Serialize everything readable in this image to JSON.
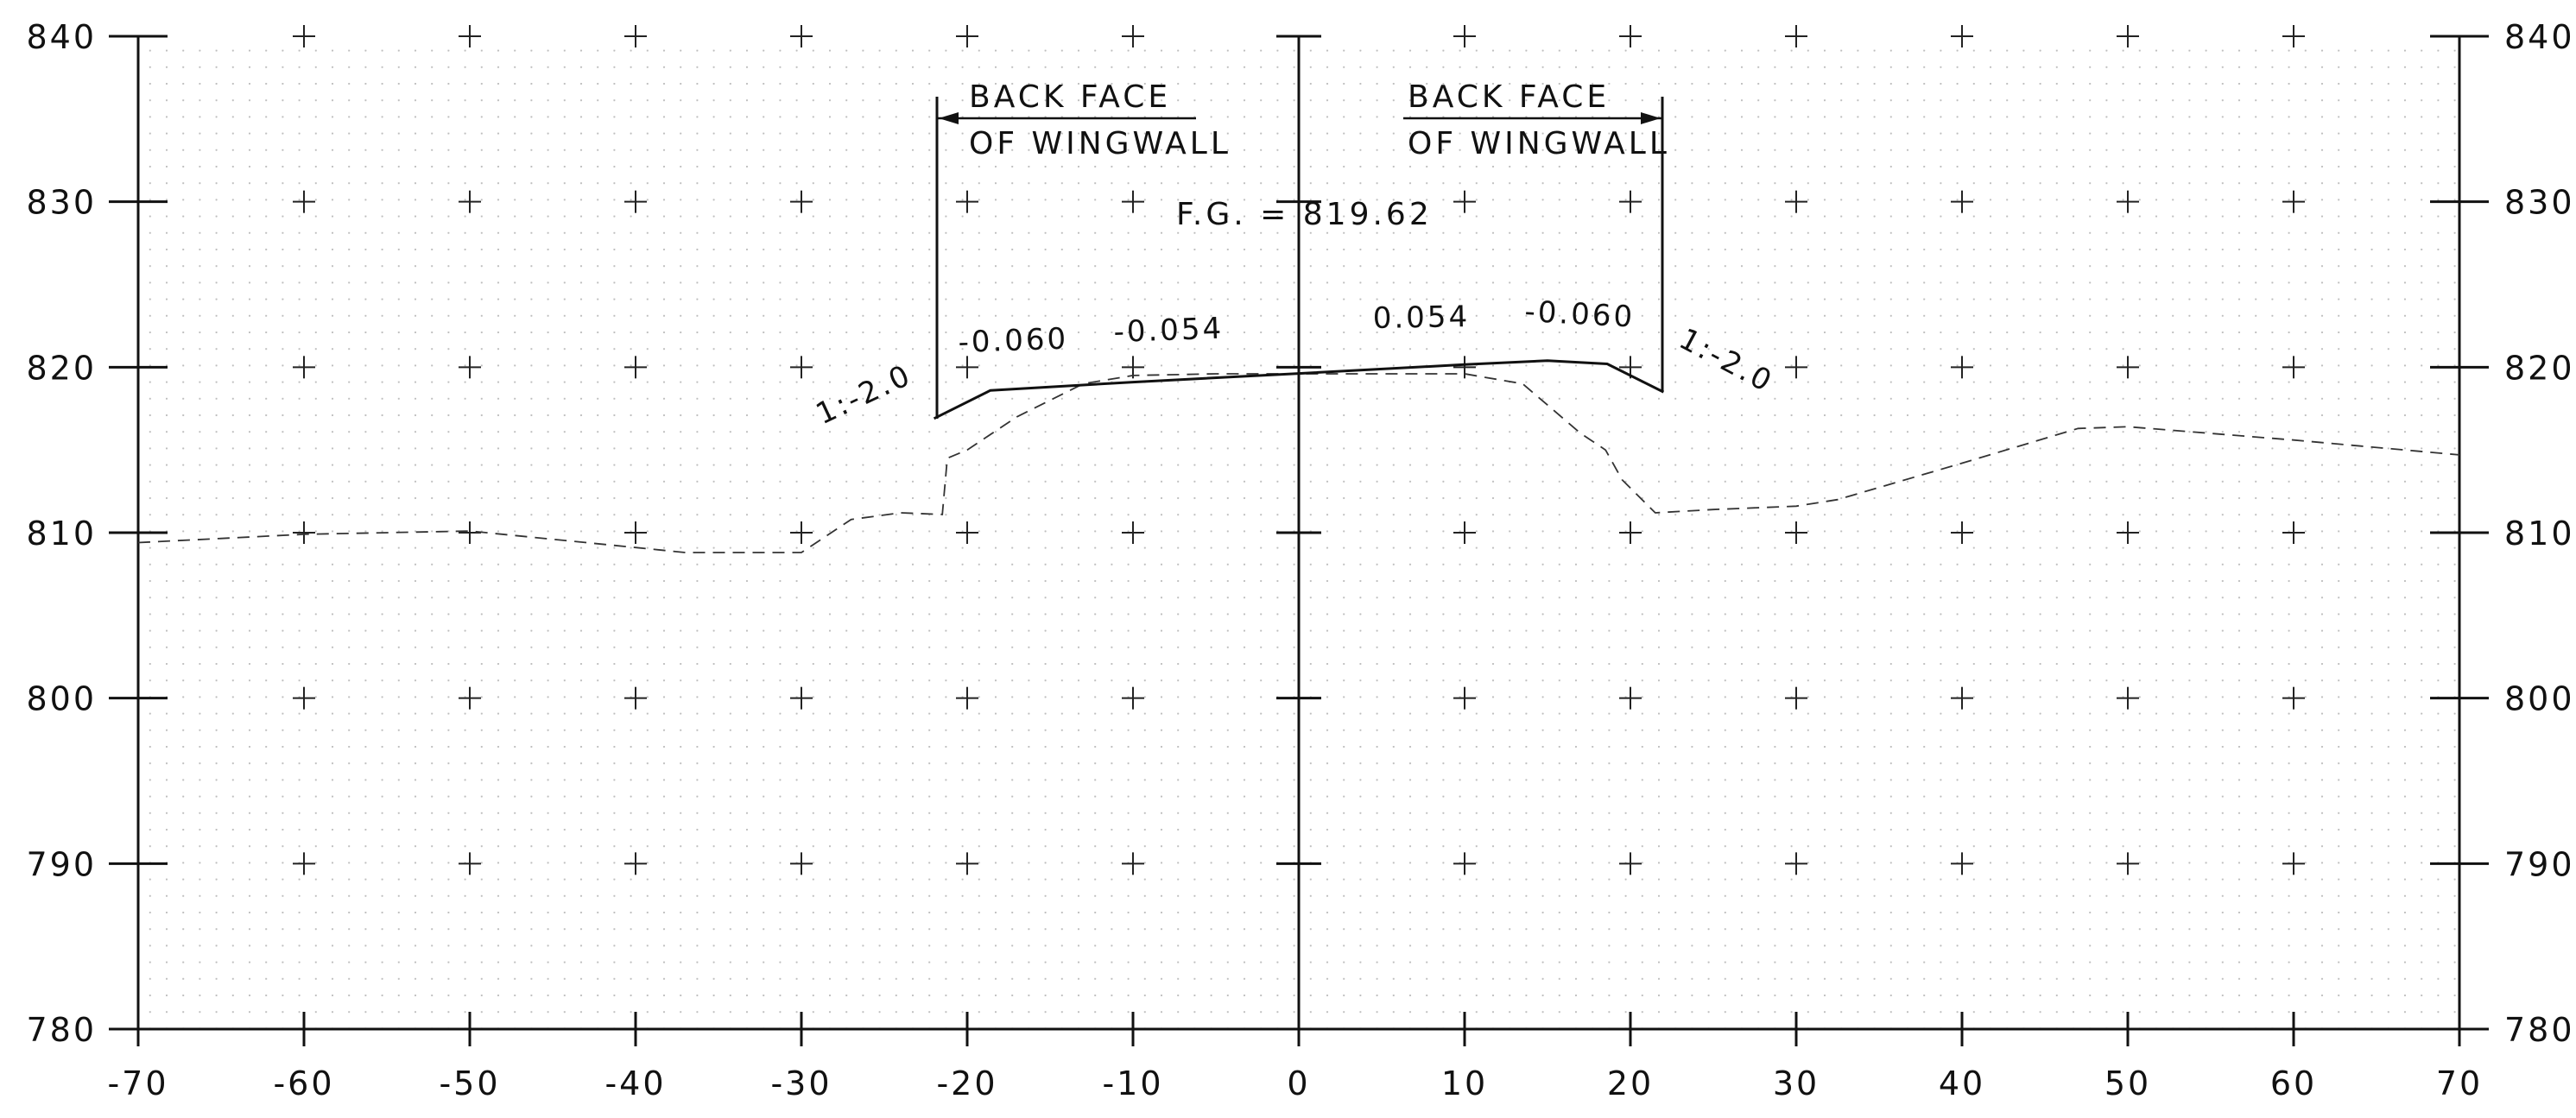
{
  "chart_data": {
    "type": "cross-section",
    "x_ticks": [
      "-70",
      "-60",
      "-50",
      "-40",
      "-30",
      "-20",
      "-10",
      "0",
      "10",
      "20",
      "30",
      "40",
      "50",
      "60",
      "70"
    ],
    "y_ticks_left": [
      "840",
      "830",
      "820",
      "810",
      "800",
      "790",
      "780"
    ],
    "y_ticks_right": [
      "840",
      "830",
      "820",
      "810",
      "800",
      "790",
      "780"
    ],
    "xlim": [
      -70,
      70
    ],
    "ylim": [
      780,
      840
    ],
    "grid": "plus-markers every 10 units with light dot grid",
    "annotations": {
      "left_wingwall_line1": "BACK FACE",
      "left_wingwall_line2": "OF WINGWALL",
      "right_wingwall_line1": "BACK FACE",
      "right_wingwall_line2": "OF WINGWALL",
      "fg_label": "F.G. = 819.62",
      "slope_left_outer": "-0.060",
      "slope_left_inner": "-0.054",
      "slope_right_inner": "0.054",
      "slope_right_outer": "-0.060",
      "side_slope_left": "1:-2.0",
      "side_slope_right": "1:-2.0"
    },
    "series": [
      {
        "style": "dashed",
        "x": [
          -70,
          -60,
          -50,
          -40,
          -37,
          -33,
          -30,
          -27,
          -24,
          -21.5,
          -21.2,
          -20,
          -17,
          -13,
          -10,
          -5,
          0,
          5,
          10,
          13.5,
          17,
          18.5,
          19.5,
          21.5,
          25,
          30,
          32.5,
          40,
          47,
          50,
          60,
          70
        ],
        "y": [
          809.4,
          809.9,
          810.1,
          809.1,
          808.8,
          808.8,
          808.8,
          810.8,
          811.2,
          811.1,
          814.5,
          815.0,
          817.0,
          819.0,
          819.5,
          819.6,
          819.6,
          819.6,
          819.6,
          819.0,
          816.0,
          815.0,
          813.2,
          811.2,
          811.4,
          811.6,
          812.0,
          814.2,
          816.3,
          816.4,
          815.6,
          814.7
        ]
      },
      {
        "style": "solid",
        "x": [
          -22,
          -18.6,
          -10,
          0,
          10,
          15,
          18.6,
          22
        ],
        "y": [
          816.9,
          818.6,
          819.1,
          819.62,
          820.16,
          820.4,
          820.2,
          818.5
        ]
      }
    ]
  }
}
